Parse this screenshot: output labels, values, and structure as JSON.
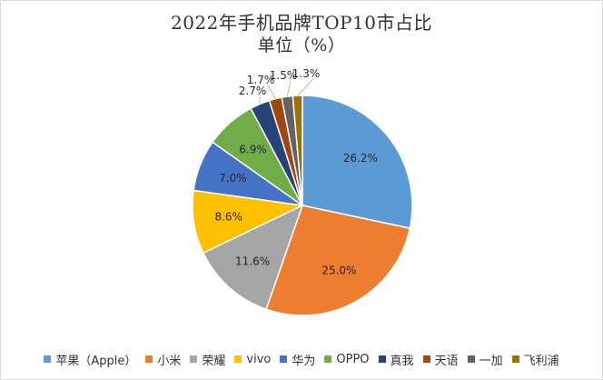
{
  "chart_data": {
    "type": "pie",
    "title": "2022年手机品牌TOP10市占比",
    "subtitle": "单位（%）",
    "categories": [
      "苹果（Apple）",
      "小米",
      "荣耀",
      "vivo",
      "华为",
      "OPPO",
      "真我",
      "天语",
      "一加",
      "飞利浦"
    ],
    "values": [
      26.2,
      25.0,
      11.6,
      8.6,
      7.0,
      6.9,
      2.7,
      1.7,
      1.5,
      1.3
    ],
    "labels": [
      "26.2%",
      "25.0%",
      "11.6%",
      "8.6%",
      "7.0%",
      "6.9%",
      "2.7%",
      "1.7%",
      "1.5%",
      "1.3%"
    ],
    "colors": [
      "#5b9bd5",
      "#ed7d31",
      "#a5a5a5",
      "#ffc000",
      "#4472c4",
      "#70ad47",
      "#264478",
      "#9e480e",
      "#636363",
      "#997300"
    ],
    "legend_position": "bottom"
  }
}
